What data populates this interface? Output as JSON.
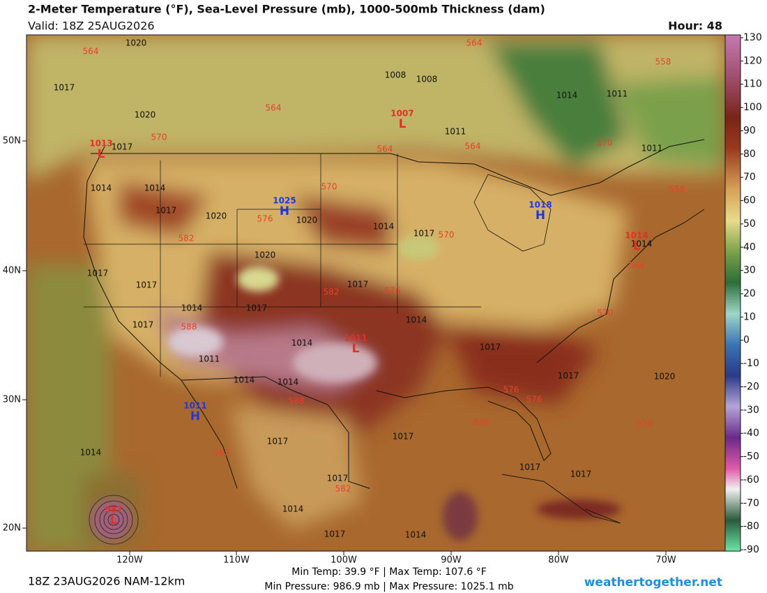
{
  "header": {
    "title": "2-Meter Temperature (°F), Sea-Level Pressure (mb), 1000-500mb Thickness (dam)",
    "valid": "Valid: 18Z 25AUG2026",
    "hour": "Hour: 48"
  },
  "colorbar": {
    "ticks": [
      130,
      120,
      110,
      100,
      90,
      80,
      70,
      60,
      50,
      40,
      30,
      20,
      10,
      0,
      -10,
      -20,
      -30,
      -40,
      -50,
      -60,
      -70,
      -80,
      -90
    ]
  },
  "axes": {
    "longitudes": [
      "120W",
      "110W",
      "100W",
      "90W",
      "80W",
      "70W"
    ],
    "latitudes": [
      "50N",
      "40N",
      "30N",
      "20N"
    ]
  },
  "isobar_labels": [
    1020,
    1017,
    1020,
    1017,
    1014,
    1014,
    1017,
    1020,
    1020,
    1014,
    1017,
    1020,
    1017,
    1017,
    1017,
    1014,
    1017,
    1014,
    1017,
    1014,
    1011,
    1014,
    1014,
    1017,
    1017,
    1020,
    1017,
    1017,
    1014,
    1017,
    1017,
    1017,
    1014,
    1014,
    1017,
    1008,
    1008,
    1011,
    1014,
    1011,
    1011,
    1014
  ],
  "thickness_labels": [
    564,
    564,
    570,
    564,
    564,
    564,
    558,
    558,
    570,
    576,
    582,
    570,
    564,
    582,
    576,
    570,
    588,
    588,
    582,
    582,
    576,
    576,
    576,
    576,
    570
  ],
  "centers": [
    {
      "symbol": "H",
      "pressure": 1025
    },
    {
      "symbol": "H",
      "pressure": 1018
    },
    {
      "symbol": "H",
      "pressure": 1011
    },
    {
      "symbol": "L",
      "pressure": 1007
    },
    {
      "symbol": "L",
      "pressure": 1011
    },
    {
      "symbol": "L",
      "pressure": 1014
    },
    {
      "symbol": "L",
      "pressure": 1013
    },
    {
      "symbol": "L",
      "pressure": 987
    }
  ],
  "footer": {
    "run": "18Z 23AUG2026 NAM-12km",
    "temps": "Min Temp:  39.9 °F | Max Temp: 107.6 °F",
    "pressures": "Min Pressure: 986.9 mb | Max Pressure: 1025.1 mb",
    "site": "weathertogether.net"
  }
}
